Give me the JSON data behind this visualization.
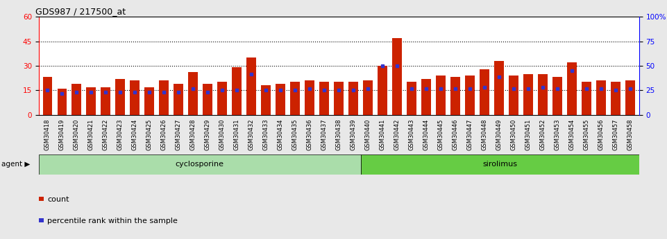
{
  "title": "GDS987 / 217500_at",
  "samples": [
    "GSM30418",
    "GSM30419",
    "GSM30420",
    "GSM30421",
    "GSM30422",
    "GSM30423",
    "GSM30424",
    "GSM30425",
    "GSM30426",
    "GSM30427",
    "GSM30428",
    "GSM30429",
    "GSM30430",
    "GSM30431",
    "GSM30432",
    "GSM30433",
    "GSM30434",
    "GSM30435",
    "GSM30436",
    "GSM30437",
    "GSM30438",
    "GSM30439",
    "GSM30440",
    "GSM30441",
    "GSM30442",
    "GSM30443",
    "GSM30444",
    "GSM30445",
    "GSM30446",
    "GSM30447",
    "GSM30448",
    "GSM30449",
    "GSM30450",
    "GSM30451",
    "GSM30452",
    "GSM30453",
    "GSM30454",
    "GSM30455",
    "GSM30456",
    "GSM30457",
    "GSM30458"
  ],
  "counts": [
    23,
    16,
    19,
    17,
    17,
    22,
    21,
    17,
    21,
    19,
    26,
    19,
    20,
    29,
    35,
    18,
    19,
    20,
    21,
    20,
    20,
    20,
    21,
    30,
    47,
    20,
    22,
    24,
    23,
    24,
    28,
    33,
    24,
    25,
    25,
    23,
    32,
    20,
    21,
    20,
    21
  ],
  "percentile_ranks": [
    15,
    13,
    14,
    14,
    14,
    14,
    14,
    14,
    14,
    14,
    16,
    14,
    15,
    15,
    25,
    15,
    15,
    15,
    16,
    15,
    15,
    15,
    16,
    30,
    30,
    16,
    16,
    16,
    16,
    16,
    17,
    23,
    16,
    16,
    17,
    16,
    27,
    16,
    16,
    15,
    16
  ],
  "cyclosporine_count": 22,
  "bar_color": "#cc2200",
  "dot_color": "#3333cc",
  "cyclosporine_color": "#aaddaa",
  "sirolimus_color": "#66cc44",
  "left_yticks": [
    0,
    15,
    30,
    45,
    60
  ],
  "right_ytick_vals": [
    0,
    25,
    50,
    75,
    100
  ],
  "right_ytick_labels": [
    "0",
    "25",
    "50",
    "75",
    "100%"
  ],
  "ylim_left": [
    0,
    60
  ],
  "ylim_right": [
    0,
    100
  ],
  "figure_bg": "#e8e8e8",
  "plot_bg": "#ffffff",
  "grid_lines": [
    15,
    30,
    45
  ],
  "bar_width": 0.65,
  "title_fontsize": 9,
  "tick_fontsize": 6,
  "agent_fontsize": 8,
  "legend_fontsize": 8
}
